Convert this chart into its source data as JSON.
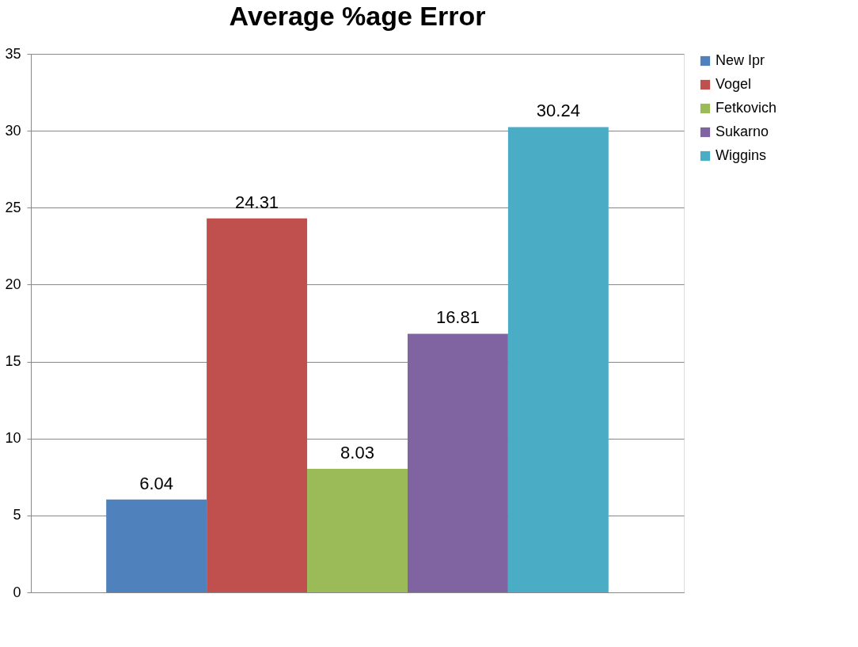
{
  "chart_data": {
    "type": "bar",
    "title": "Average %age Error",
    "categories": [
      null
    ],
    "series": [
      {
        "name": "New Ipr",
        "color": "#4f81bd",
        "values": [
          6.04
        ]
      },
      {
        "name": "Vogel",
        "color": "#c0504d",
        "values": [
          24.31
        ]
      },
      {
        "name": "Fetkovich",
        "color": "#9bbb59",
        "values": [
          8.03
        ]
      },
      {
        "name": "Sukarno",
        "color": "#8064a2",
        "values": [
          16.81
        ]
      },
      {
        "name": "Wiggins",
        "color": "#4bacc6",
        "values": [
          30.24
        ]
      }
    ],
    "ylim": [
      0,
      35
    ],
    "yticks": [
      0,
      5,
      10,
      15,
      20,
      25,
      30,
      35
    ],
    "grid": "y",
    "legend": "right",
    "data_labels": true,
    "tick_labels": "y"
  }
}
